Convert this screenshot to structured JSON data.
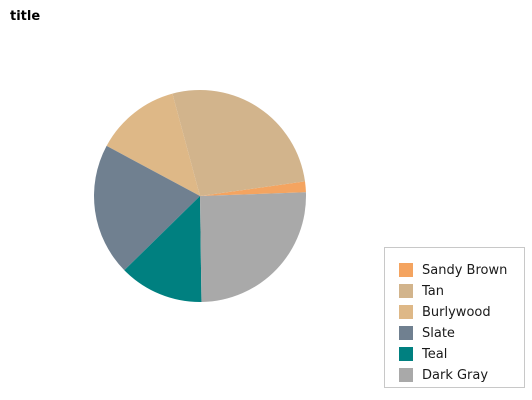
{
  "chart_data": {
    "type": "pie",
    "title": "title",
    "categories": [
      "Sandy Brown",
      "Tan",
      "Burlywood",
      "Slate",
      "Teal",
      "Dark Gray"
    ],
    "values": [
      1.6,
      26.2,
      12.6,
      19.6,
      12.5,
      24.6
    ],
    "colors": [
      "#f4a460",
      "#d2b48c",
      "#deb887",
      "#708090",
      "#008080",
      "#a9a9a9"
    ],
    "legend_position": "bottom-right",
    "start_angle_deg": 88,
    "direction": "counterclockwise"
  }
}
